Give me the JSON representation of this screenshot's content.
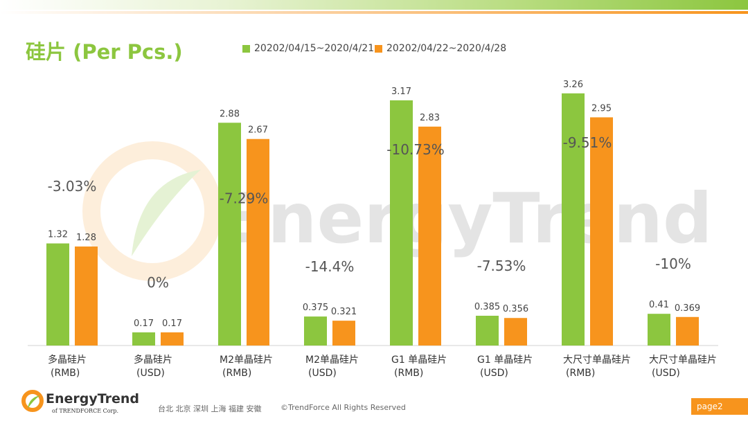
{
  "title": "硅片 (Per Pcs.)",
  "watermark": "EnergyTrend",
  "colors": {
    "series1": "#8cc63f",
    "series2": "#f7941d",
    "title": "#8cc63f"
  },
  "chart_data": {
    "type": "bar",
    "categories": [
      [
        "多晶硅片",
        "(RMB)"
      ],
      [
        "多晶硅片",
        "(USD)"
      ],
      [
        "M2单晶硅片",
        "(RMB)"
      ],
      [
        "M2单晶硅片",
        "(USD)"
      ],
      [
        "G1 单晶硅片",
        "(RMB)"
      ],
      [
        "G1 单晶硅片",
        "(USD)"
      ],
      [
        "大尺寸单晶硅片",
        "(RMB)"
      ],
      [
        "大尺寸单晶硅片",
        "(USD)"
      ]
    ],
    "series": [
      {
        "name": "20202/04/15~2020/4/21",
        "values": [
          1.32,
          0.17,
          2.88,
          0.375,
          3.17,
          0.385,
          3.26,
          0.41
        ],
        "labels": [
          "1.32",
          "0.17",
          "2.88",
          "0.375",
          "3.17",
          "0.385",
          "3.26",
          "0.41"
        ]
      },
      {
        "name": "20202/04/22~2020/4/28",
        "values": [
          1.28,
          0.17,
          2.67,
          0.321,
          2.83,
          0.356,
          2.95,
          0.369
        ],
        "labels": [
          "1.28",
          "0.17",
          "2.67",
          "0.321",
          "2.83",
          "0.356",
          "2.95",
          "0.369"
        ]
      }
    ],
    "changes": [
      "-3.03%",
      "0%",
      "-7.29%",
      "-14.4%",
      "-10.73%",
      "-7.53%",
      "-9.51%",
      "-10%"
    ],
    "ylim": [
      0,
      3.5
    ],
    "grid": false,
    "legend_position": "top"
  },
  "footer": {
    "brand": "EnergyTrend",
    "brand_sub": "of TRENDFORCE Corp.",
    "cities": "台北 北京 深圳 上海 福建 安徽",
    "copyright": "©TrendForce All Rights Reserved",
    "page": "page2"
  }
}
